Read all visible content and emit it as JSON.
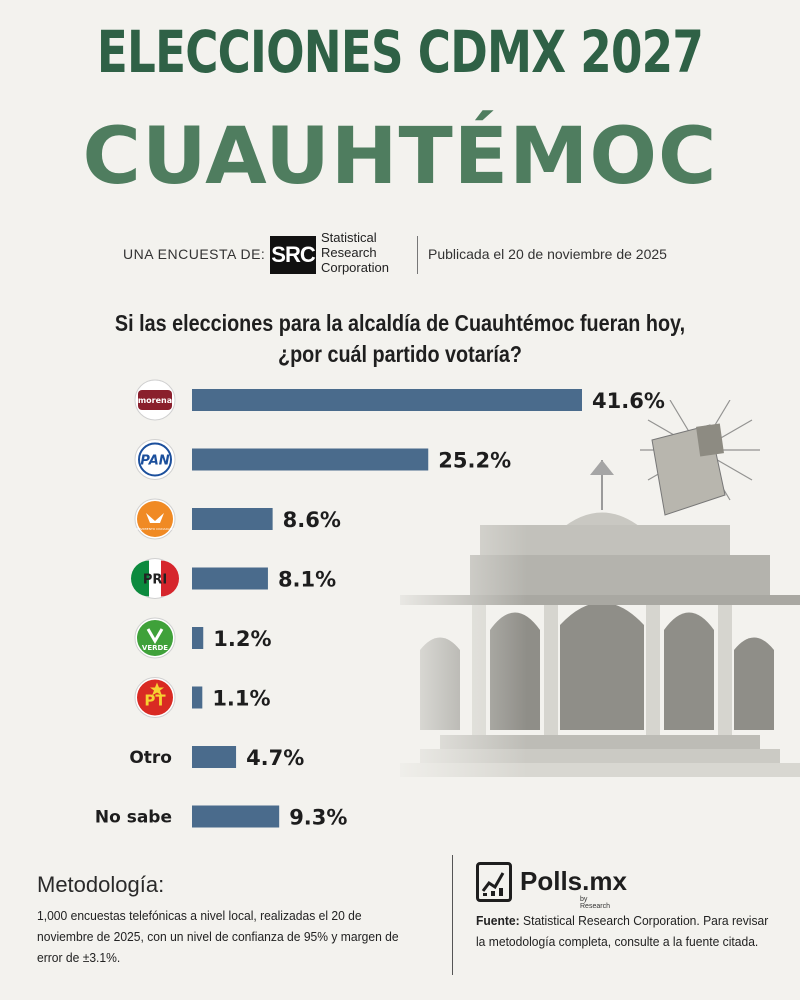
{
  "header": {
    "title_line1": "ELECCIONES CDMX 2027",
    "title_line2": "CUAUHTÉMOC",
    "credit_label": "UNA ENCUESTA DE:",
    "pollster_logo_text": "SRC",
    "pollster_name_line1": "Statistical",
    "pollster_name_line2": "Research",
    "pollster_name_line3": "Corporation",
    "published": "Publicada  el 20 de noviembre de 2025"
  },
  "question": {
    "line1": "Si las elecciones para la alcaldía de Cuauhtémoc fueran hoy,",
    "line2": "¿por cuál partido votaría?"
  },
  "chart_data": {
    "type": "bar",
    "orientation": "horizontal",
    "title": "",
    "categories": [
      "morena",
      "PAN",
      "MOVIMIENTO CIUDADANO",
      "PRI",
      "VERDE",
      "PT",
      "Otro",
      "No sabe"
    ],
    "values": [
      41.6,
      25.2,
      8.6,
      8.1,
      1.2,
      1.1,
      4.7,
      9.3
    ],
    "value_labels": [
      "41.6%",
      "25.2%",
      "8.6%",
      "8.1%",
      "1.2%",
      "1.1%",
      "4.7%",
      "9.3%"
    ],
    "category_display": [
      "logo",
      "logo",
      "logo",
      "logo",
      "logo",
      "logo",
      "text",
      "text"
    ],
    "bar_color": "#4a6b8c",
    "xlim": [
      0,
      45
    ],
    "grid": false,
    "legend": "none"
  },
  "party_logos": {
    "morena": {
      "text": "morena",
      "color": "#8a1f2c"
    },
    "pan": {
      "text": "PAN",
      "color": "#1b4f9c"
    },
    "mc": {
      "text": "MOVIMIENTO CIUDADANO",
      "color": "#f08a24"
    },
    "pri": {
      "text": "PRI",
      "colors": [
        "#0c8a3e",
        "#ffffff",
        "#d6262c"
      ]
    },
    "verde": {
      "text": "VERDE",
      "color": "#3fa13a"
    },
    "pt": {
      "text": "PT",
      "color": "#d92a23",
      "accent": "#f6d232"
    }
  },
  "footer": {
    "method_title": "Metodología:",
    "method_text": "1,000 encuestas telefónicas a nivel local, realizadas el 20 de noviembre de 2025, con un nivel de confianza de 95% y margen de error de ±3.1%.",
    "brand_name": "Polls.mx",
    "brand_sub": "by Research",
    "source_label": "Fuente:",
    "source_text": " Statistical Research Corporation. Para revisar la metodología completa, consulte a la fuente citada."
  },
  "colors": {
    "title_dark_green": "#2f6146",
    "title_green": "#4f7d5f",
    "background": "#f3f2ee"
  }
}
